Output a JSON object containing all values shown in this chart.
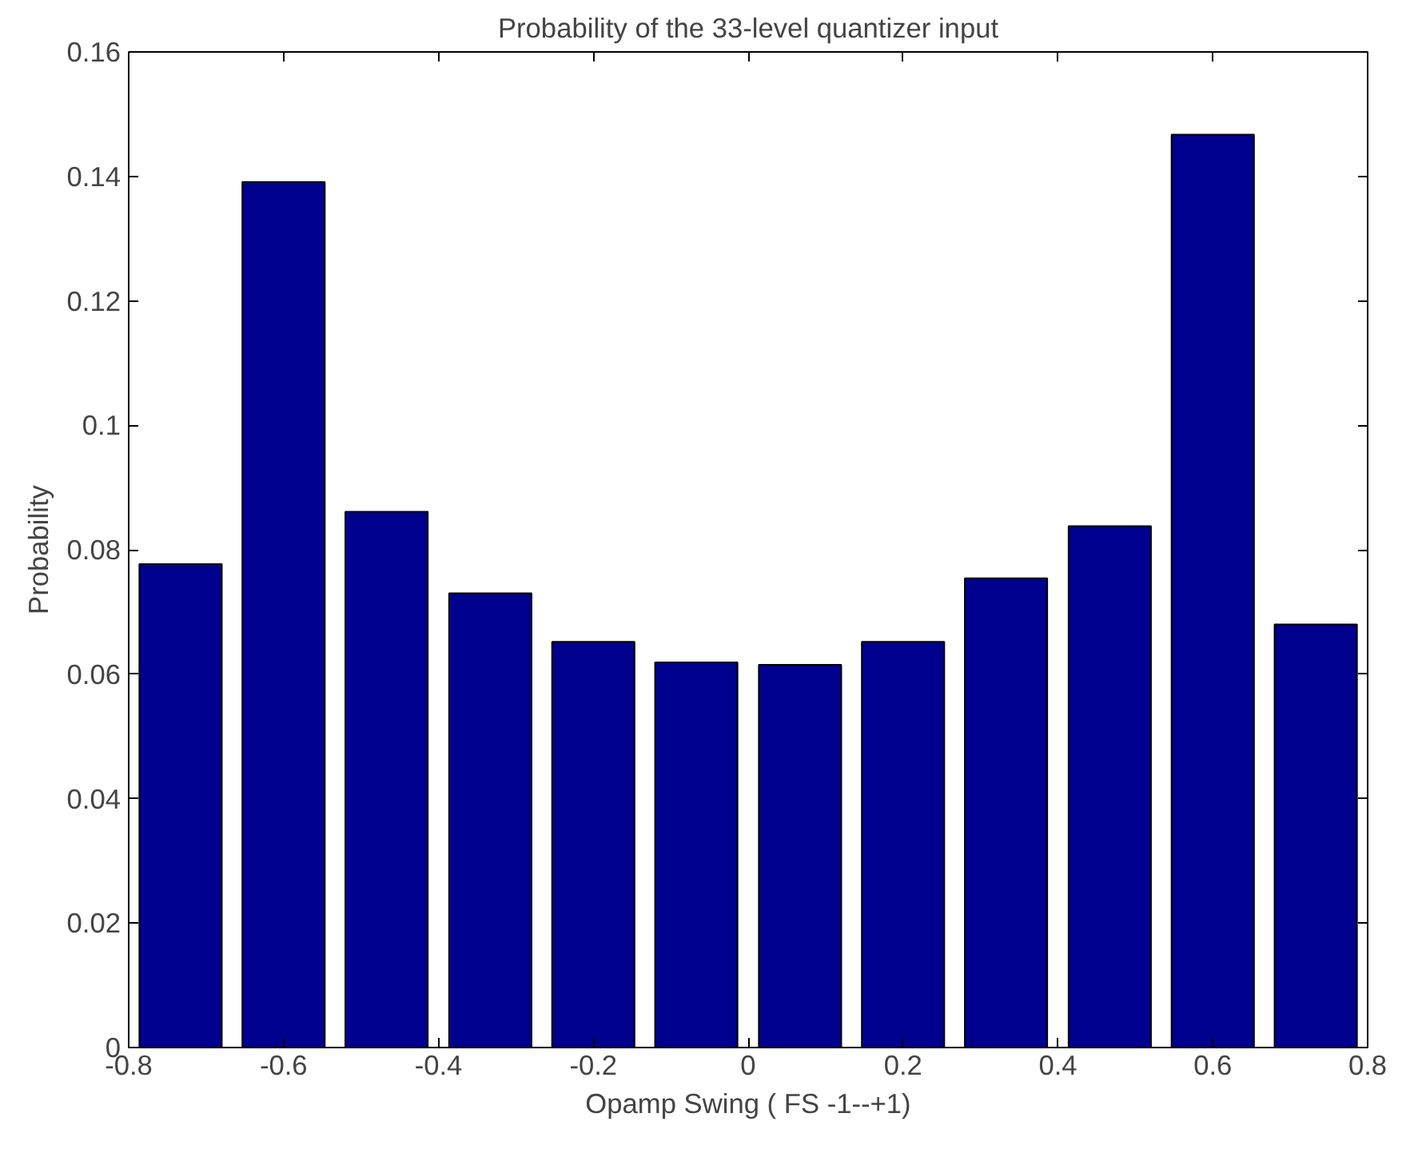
{
  "chart_data": {
    "type": "bar",
    "title": "Probability of the 33-level quantizer input",
    "xlabel": "Opamp Swing ( FS -1--+1)",
    "ylabel": "Probability",
    "x": [
      -0.733,
      -0.6,
      -0.467,
      -0.333,
      -0.2,
      -0.067,
      0.067,
      0.2,
      0.333,
      0.467,
      0.6,
      0.733
    ],
    "values": [
      0.0777,
      0.1391,
      0.0861,
      0.073,
      0.0652,
      0.0619,
      0.0615,
      0.0652,
      0.0754,
      0.0838,
      0.1467,
      0.068
    ],
    "color": "#00008f",
    "xlim": [
      -0.8,
      0.8
    ],
    "xticks": [
      -0.8,
      -0.6,
      -0.4,
      -0.2,
      0,
      0.2,
      0.4,
      0.6,
      0.8
    ],
    "ylim": [
      0,
      0.16
    ],
    "yticks": [
      0,
      0.02,
      0.04,
      0.06,
      0.08,
      0.1,
      0.12,
      0.14,
      0.16
    ],
    "grid": false
  }
}
